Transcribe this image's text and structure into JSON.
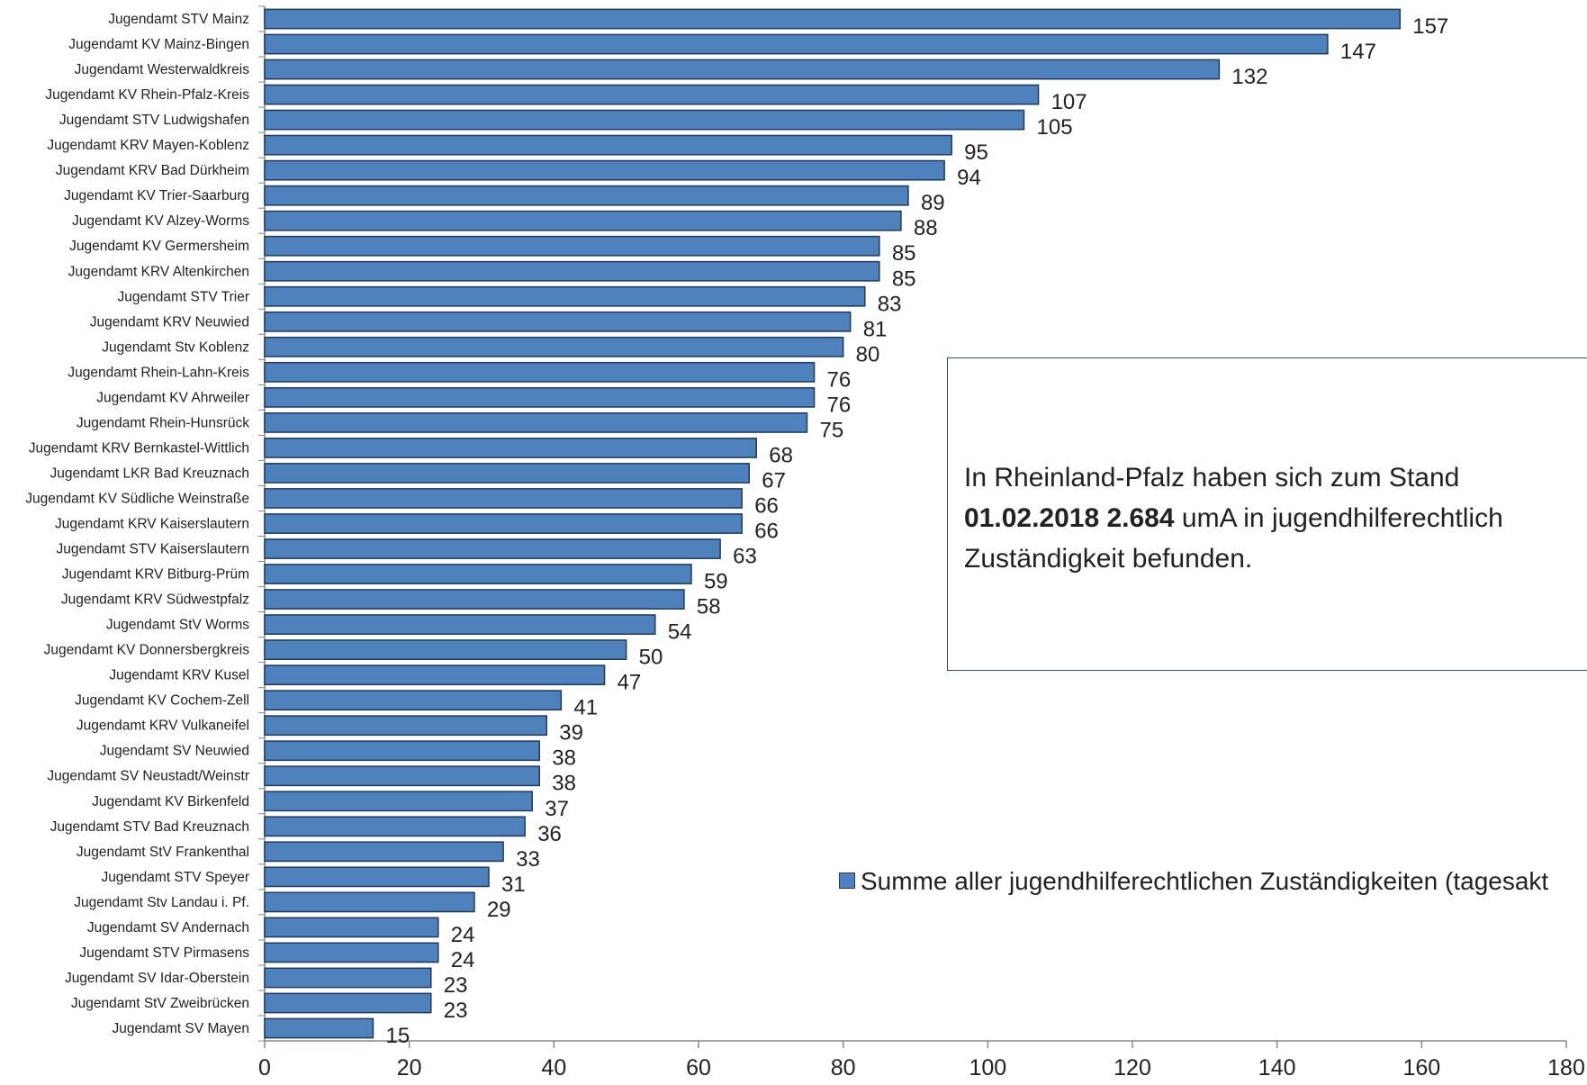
{
  "chart_data": {
    "type": "bar",
    "orientation": "horizontal",
    "categories": [
      "Jugendamt STV Mainz",
      "Jugendamt KV Mainz-Bingen",
      "Jugendamt Westerwaldkreis",
      "Jugendamt KV Rhein-Pfalz-Kreis",
      "Jugendamt STV Ludwigshafen",
      "Jugendamt KRV Mayen-Koblenz",
      "Jugendamt KRV Bad Dürkheim",
      "Jugendamt KV Trier-Saarburg",
      "Jugendamt KV Alzey-Worms",
      "Jugendamt KV Germersheim",
      "Jugendamt KRV Altenkirchen",
      "Jugendamt STV Trier",
      "Jugendamt KRV Neuwied",
      "Jugendamt Stv Koblenz",
      "Jugendamt Rhein-Lahn-Kreis",
      "Jugendamt KV Ahrweiler",
      "Jugendamt Rhein-Hunsrück",
      "Jugendamt KRV Bernkastel-Wittlich",
      "Jugendamt LKR Bad Kreuznach",
      "Jugendamt KV Südliche Weinstraße",
      "Jugendamt KRV Kaiserslautern",
      "Jugendamt STV Kaiserslautern",
      "Jugendamt KRV Bitburg-Prüm",
      "Jugendamt KRV Südwestpfalz",
      "Jugendamt StV Worms",
      "Jugendamt KV Donnersbergkreis",
      "Jugendamt KRV Kusel",
      "Jugendamt KV Cochem-Zell",
      "Jugendamt KRV Vulkaneifel",
      "Jugendamt SV Neuwied",
      "Jugendamt SV Neustadt/Weinstr",
      "Jugendamt KV Birkenfeld",
      "Jugendamt STV Bad Kreuznach",
      "Jugendamt StV Frankenthal",
      "Jugendamt STV Speyer",
      "Jugendamt Stv Landau i. Pf.",
      "Jugendamt SV Andernach",
      "Jugendamt STV Pirmasens",
      "Jugendamt SV Idar-Oberstein",
      "Jugendamt StV Zweibrücken",
      "Jugendamt SV Mayen"
    ],
    "series": [
      {
        "name": "Summe aller jugendhilferechtlichen Zuständigkeiten (tagesakt",
        "values": [
          157,
          147,
          132,
          107,
          105,
          95,
          94,
          89,
          88,
          85,
          85,
          83,
          81,
          80,
          76,
          76,
          75,
          68,
          67,
          66,
          66,
          63,
          59,
          58,
          54,
          50,
          47,
          41,
          39,
          38,
          38,
          37,
          36,
          33,
          31,
          29,
          24,
          24,
          23,
          23,
          15
        ]
      }
    ],
    "xlim": [
      0,
      180
    ],
    "xticks": [
      0,
      20,
      40,
      60,
      80,
      100,
      120,
      140,
      160,
      180
    ],
    "grid": false,
    "legend_position": "right",
    "colors": {
      "bar_fill": "#4f81bd",
      "bar_stroke": "#1f3b5c",
      "axis": "#888888"
    }
  },
  "annotation": {
    "line1": "In Rheinland-Pfalz haben sich zum Stand",
    "line2_bold": "01.02.2018 2.684",
    "line2_rest": " umA in jugendhilferechtlich",
    "line3": "Zuständigkeit befunden."
  },
  "legend": {
    "label": "Summe aller jugendhilferechtlichen Zuständigkeiten (tagesakt"
  }
}
